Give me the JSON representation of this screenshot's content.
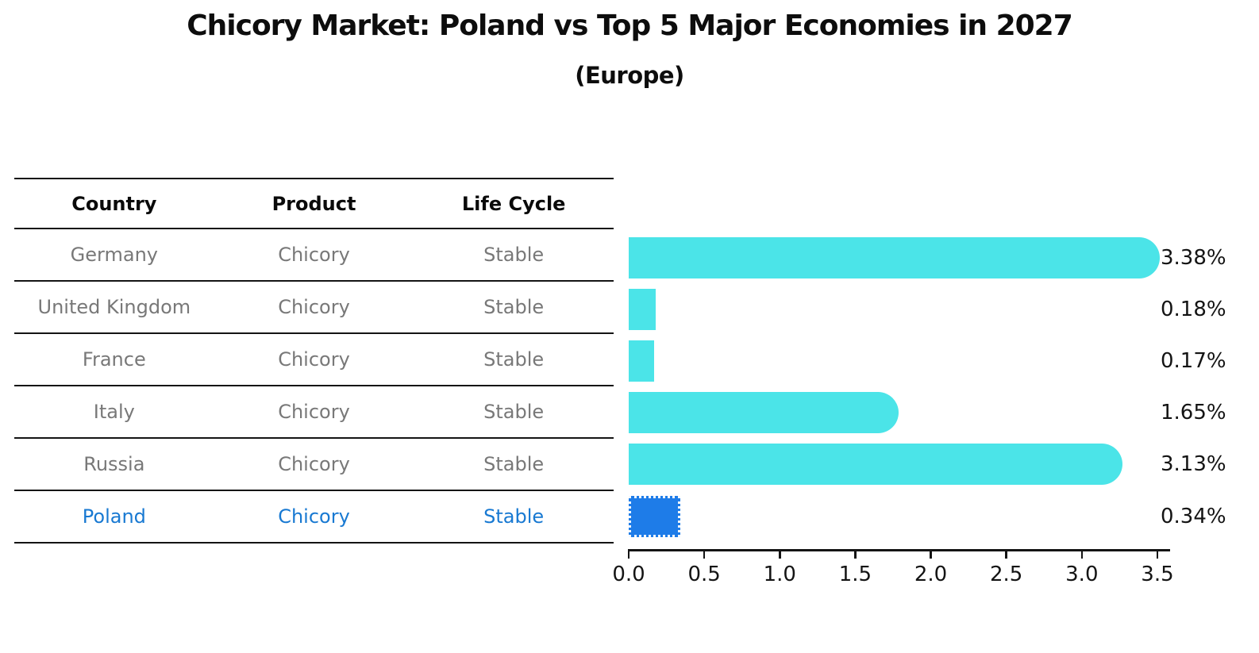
{
  "title": "Chicory Market: Poland vs Top 5 Major Economies in 2027",
  "subtitle": "(Europe)",
  "table": {
    "headers": [
      "Country",
      "Product",
      "Life Cycle"
    ],
    "rows": [
      {
        "country": "Germany",
        "product": "Chicory",
        "life_cycle": "Stable",
        "highlight": false
      },
      {
        "country": "United Kingdom",
        "product": "Chicory",
        "life_cycle": "Stable",
        "highlight": false
      },
      {
        "country": "France",
        "product": "Chicory",
        "life_cycle": "Stable",
        "highlight": false
      },
      {
        "country": "Italy",
        "product": "Chicory",
        "life_cycle": "Stable",
        "highlight": false
      },
      {
        "country": "Russia",
        "product": "Chicory",
        "life_cycle": "Stable",
        "highlight": false
      },
      {
        "country": "Poland",
        "product": "Chicory",
        "life_cycle": "Stable",
        "highlight": true
      }
    ]
  },
  "chart_data": {
    "type": "bar",
    "orientation": "horizontal",
    "title": "Chicory Market: Poland vs Top 5 Major Economies in 2027",
    "subtitle": "(Europe)",
    "categories": [
      "Germany",
      "United Kingdom",
      "France",
      "Italy",
      "Russia",
      "Poland"
    ],
    "values": [
      3.38,
      0.18,
      0.17,
      1.65,
      3.13,
      0.34
    ],
    "value_labels": [
      "3.38%",
      "0.18%",
      "0.17%",
      "1.65%",
      "3.13%",
      "0.34%"
    ],
    "unit": "%",
    "xlim": [
      0.0,
      3.5
    ],
    "x_ticks": [
      "0.0",
      "0.5",
      "1.0",
      "1.5",
      "2.0",
      "2.5",
      "3.0",
      "3.5"
    ],
    "grid": false,
    "legend": false,
    "bar_color": "#4be4e8",
    "highlight_color": "#1e7ce8",
    "highlight_index": 5,
    "highlight_style": "dotted-border"
  },
  "colors": {
    "background": "#ffffff",
    "bar_cyan": "#4be4e8",
    "bar_blue": "#1e7ce8",
    "text_black": "#0d0d0d",
    "text_gray": "#787878",
    "text_blue": "#1879d2",
    "axis": "#141414"
  }
}
